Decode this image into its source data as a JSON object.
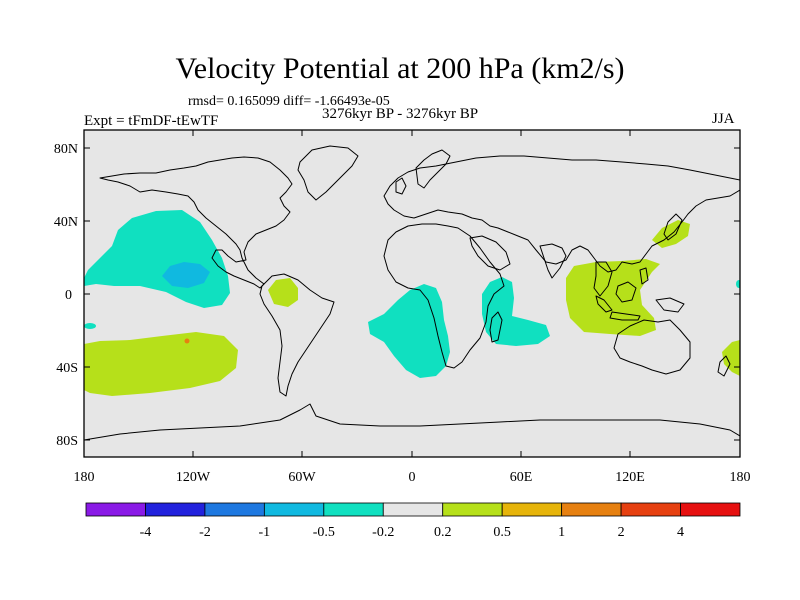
{
  "title": "Velocity Potential at 200 hPa (km2/s)",
  "stats": "rmsd= 0.165099 diff= -1.66493e-05",
  "period": "3276kyr BP - 3276kyr BP",
  "experiment": "Expt = tFmDF-tEwTF",
  "season": "JJA",
  "lat_labels": [
    "80N",
    "40N",
    "0",
    "40S",
    "80S"
  ],
  "lon_labels": [
    "180",
    "120W",
    "60W",
    "0",
    "60E",
    "120E",
    "180"
  ],
  "colorbar": {
    "labels": [
      "-4",
      "-2",
      "-1",
      "-0.5",
      "-0.2",
      "0.2",
      "0.5",
      "1",
      "2",
      "4"
    ],
    "colors": [
      "#8a1ae6",
      "#2222dd",
      "#1e78e0",
      "#10b9e0",
      "#10e0c0",
      "#e6e6e6",
      "#b6e01a",
      "#e6b40a",
      "#e68010",
      "#e64010",
      "#e61010"
    ]
  },
  "colors": {
    "background_field": "#e6e6e6",
    "neg_02_05": "#10e0c0",
    "neg_05_1": "#10b9e0",
    "pos_02_05": "#b6e01a",
    "pos_1_2": "#e68010"
  }
}
